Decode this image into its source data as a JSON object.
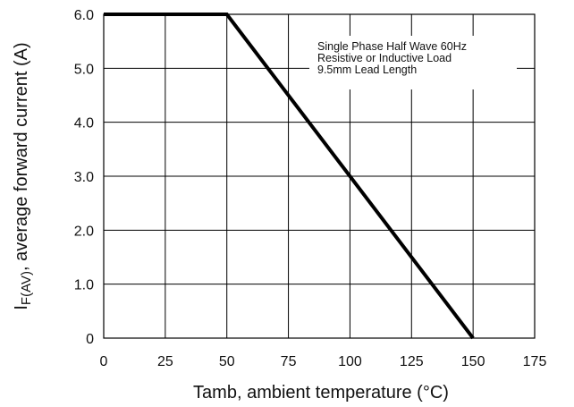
{
  "chart_data": {
    "type": "line",
    "xlabel": "Tamb, ambient temperature (°C)",
    "ylabel": {
      "main": "I",
      "subscript": "F(AV)",
      "rest": ", average forward current (A)"
    },
    "xlim": [
      0,
      175
    ],
    "ylim": [
      0,
      6.0
    ],
    "xticks": [
      0,
      25,
      50,
      75,
      100,
      125,
      150,
      175
    ],
    "xtick_labels": [
      "0",
      "25",
      "50",
      "75",
      "100",
      "125",
      "150",
      "175"
    ],
    "yticks": [
      0,
      1.0,
      2.0,
      3.0,
      4.0,
      5.0,
      6.0
    ],
    "ytick_labels": [
      "0",
      "1.0",
      "2.0",
      "3.0",
      "4.0",
      "5.0",
      "6.0"
    ],
    "grid": true,
    "annotation": [
      "Single Phase Half Wave 60Hz",
      "Resistive or Inductive Load",
      "9.5mm Lead Length"
    ],
    "series": [
      {
        "x": [
          0,
          50,
          150
        ],
        "y": [
          6.0,
          6.0,
          0
        ]
      }
    ],
    "colors": {
      "line": "#000000",
      "grid": "#000000",
      "background": "#ffffff"
    }
  }
}
